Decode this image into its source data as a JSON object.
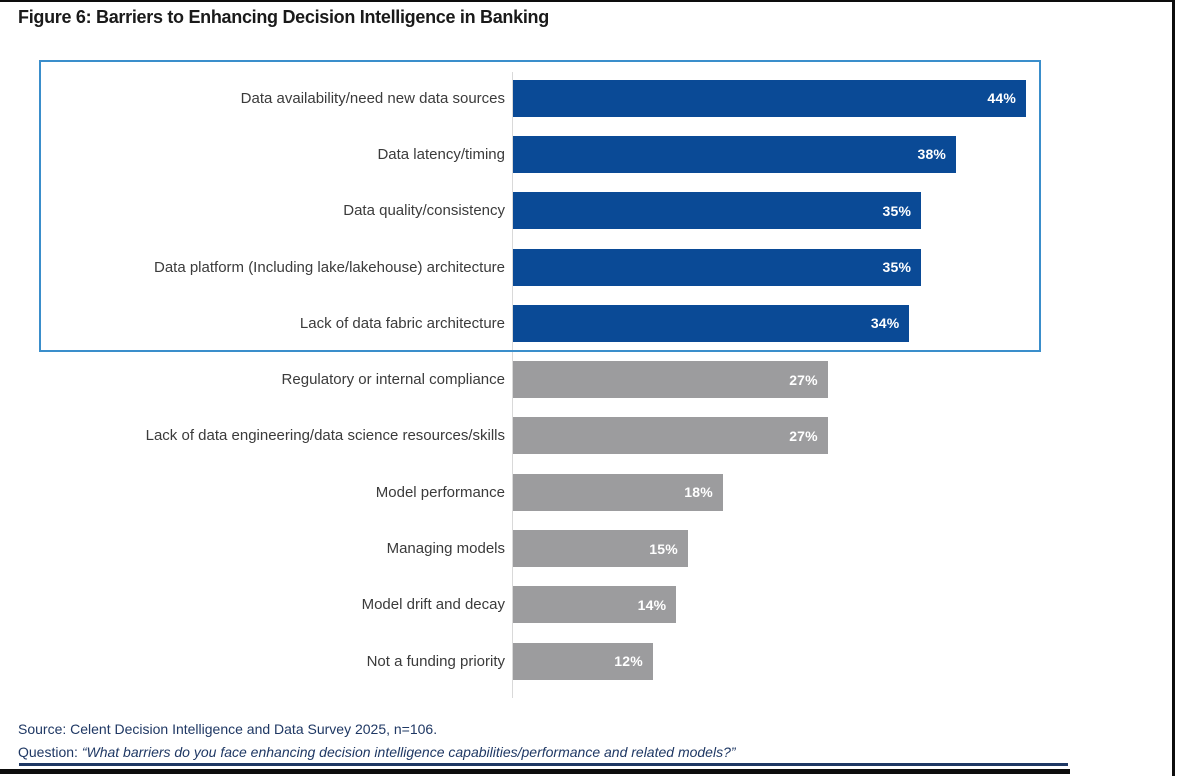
{
  "figure": {
    "title": "Figure 6: Barriers to Enhancing Decision Intelligence in Banking",
    "source_line": "Source: Celent Decision Intelligence and Data Survey 2025, n=106.",
    "question_prefix": "Question: ",
    "question_line": "“What barriers do you face enhancing decision intelligence capabilities/performance and related models?”"
  },
  "colors": {
    "highlighted_bar": "#0a4a96",
    "regular_bar": "#9c9c9e",
    "highlight_box_border": "#3a8ecb",
    "value_label": "#ffffff",
    "category_label": "#3b3b3b",
    "footnote_text": "#1f3864",
    "axis_line": "#d9d9d9",
    "border_line": "#0d0d0d"
  },
  "chart_data": {
    "type": "bar",
    "orientation": "horizontal",
    "title": "Figure 6: Barriers to Enhancing Decision Intelligence in Banking",
    "xlabel": "",
    "ylabel": "",
    "xlim": [
      0,
      46
    ],
    "grid": false,
    "legend": false,
    "value_label_position": "inside-end",
    "categories": [
      "Data availability/need new data sources",
      "Data latency/timing",
      "Data quality/consistency",
      "Data platform (Including lake/lakehouse) architecture",
      "Lack of data fabric architecture",
      "Regulatory or internal compliance",
      "Lack of data engineering/data science resources/skills",
      "Model performance",
      "Managing models",
      "Model drift and decay",
      "Not a funding priority"
    ],
    "values": [
      44,
      38,
      35,
      35,
      34,
      27,
      27,
      18,
      15,
      14,
      12
    ],
    "value_labels": [
      "44%",
      "38%",
      "35%",
      "35%",
      "34%",
      "27%",
      "27%",
      "18%",
      "15%",
      "14%",
      "12%"
    ],
    "highlighted_count": 5,
    "highlight_note": "Top five bars are blue and enclosed in a light-blue outlined box; remaining bars are gray"
  }
}
